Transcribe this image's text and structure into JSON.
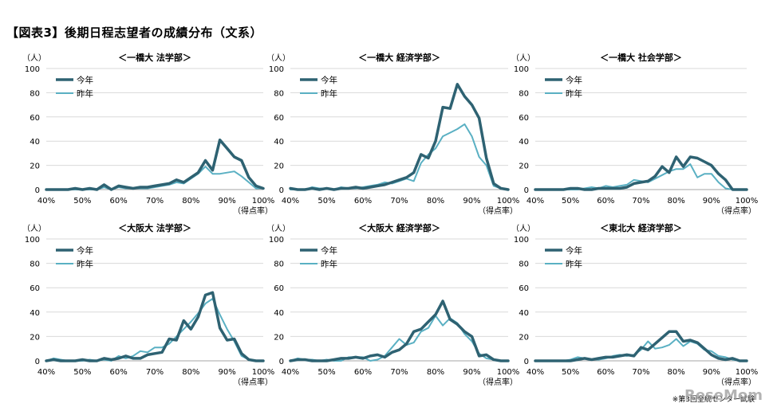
{
  "title": "【図表3】後期日程志望者の成績分布（文系）",
  "footnote": "※第3回全統センター試験",
  "watermark": "ReseMom",
  "colors": {
    "current": "#2e6272",
    "previous": "#5ab0c3",
    "grid": "#d9d9d9",
    "axis": "#a6a6a6"
  },
  "chart_data": [
    {
      "type": "line",
      "title": "＜一橋大 法学部＞",
      "y_unit": "（人）",
      "x_unit": "（得点率）",
      "legend_position": "top-left",
      "grid": true,
      "ylim": [
        0,
        100
      ],
      "y_ticks": [
        "0",
        "20",
        "40",
        "60",
        "80",
        "100"
      ],
      "xlim": [
        40,
        100
      ],
      "x_ticks": [
        "40%",
        "50%",
        "60%",
        "70%",
        "80%",
        "90%",
        "100%"
      ],
      "series": [
        {
          "name": "今年",
          "color": "#2e6272",
          "x": [
            40,
            42,
            44,
            46,
            48,
            50,
            52,
            54,
            56,
            58,
            60,
            62,
            64,
            66,
            68,
            70,
            72,
            74,
            76,
            78,
            80,
            82,
            84,
            86,
            88,
            90,
            92,
            94,
            96,
            98,
            100
          ],
          "values": [
            0,
            0,
            0,
            0,
            1,
            0,
            1,
            0,
            4,
            0,
            3,
            2,
            1,
            2,
            2,
            3,
            4,
            5,
            8,
            6,
            10,
            14,
            24,
            16,
            41,
            34,
            27,
            24,
            10,
            3,
            1
          ]
        },
        {
          "name": "昨年",
          "color": "#5ab0c3",
          "x": [
            40,
            42,
            44,
            46,
            48,
            50,
            52,
            54,
            56,
            58,
            60,
            62,
            64,
            66,
            68,
            70,
            72,
            74,
            76,
            78,
            80,
            82,
            84,
            86,
            88,
            90,
            92,
            94,
            96,
            98,
            100
          ],
          "values": [
            0,
            0,
            0,
            0,
            0,
            0,
            0,
            0,
            2,
            0,
            2,
            1,
            1,
            1,
            1,
            2,
            3,
            4,
            6,
            5,
            9,
            13,
            19,
            13,
            13,
            14,
            15,
            11,
            6,
            1,
            1
          ]
        }
      ]
    },
    {
      "type": "line",
      "title": "＜一橋大 経済学部＞",
      "y_unit": "（人）",
      "x_unit": "（得点率）",
      "legend_position": "top-left",
      "grid": true,
      "ylim": [
        0,
        100
      ],
      "y_ticks": [
        "0",
        "20",
        "40",
        "60",
        "80",
        "100"
      ],
      "xlim": [
        40,
        100
      ],
      "x_ticks": [
        "40%",
        "50%",
        "60%",
        "70%",
        "80%",
        "90%",
        "100%"
      ],
      "series": [
        {
          "name": "今年",
          "color": "#2e6272",
          "x": [
            40,
            42,
            44,
            46,
            48,
            50,
            52,
            54,
            56,
            58,
            60,
            62,
            64,
            66,
            68,
            70,
            72,
            74,
            76,
            78,
            80,
            82,
            84,
            86,
            88,
            90,
            92,
            94,
            96,
            98,
            100
          ],
          "values": [
            1,
            0,
            0,
            1,
            0,
            1,
            0,
            1,
            1,
            2,
            1,
            2,
            3,
            4,
            6,
            8,
            10,
            14,
            29,
            26,
            40,
            68,
            67,
            87,
            77,
            70,
            59,
            26,
            5,
            1,
            0
          ]
        },
        {
          "name": "昨年",
          "color": "#5ab0c3",
          "x": [
            40,
            42,
            44,
            46,
            48,
            50,
            52,
            54,
            56,
            58,
            60,
            62,
            64,
            66,
            68,
            70,
            72,
            74,
            76,
            78,
            80,
            82,
            84,
            86,
            88,
            90,
            92,
            94,
            96,
            98,
            100
          ],
          "values": [
            0,
            0,
            0,
            2,
            1,
            1,
            0,
            2,
            1,
            1,
            2,
            3,
            4,
            6,
            5,
            7,
            9,
            7,
            22,
            29,
            34,
            44,
            47,
            50,
            54,
            44,
            27,
            20,
            3,
            1,
            0
          ]
        }
      ]
    },
    {
      "type": "line",
      "title": "＜一橋大 社会学部＞",
      "y_unit": "（人）",
      "x_unit": "（得点率）",
      "legend_position": "top-left",
      "grid": true,
      "ylim": [
        0,
        100
      ],
      "y_ticks": [
        "0",
        "20",
        "40",
        "60",
        "80",
        "100"
      ],
      "xlim": [
        40,
        100
      ],
      "x_ticks": [
        "40%",
        "50%",
        "60%",
        "70%",
        "80%",
        "90%",
        "100%"
      ],
      "series": [
        {
          "name": "今年",
          "color": "#2e6272",
          "x": [
            40,
            42,
            44,
            46,
            48,
            50,
            52,
            54,
            56,
            58,
            60,
            62,
            64,
            66,
            68,
            70,
            72,
            74,
            76,
            78,
            80,
            82,
            84,
            86,
            88,
            90,
            92,
            94,
            96,
            98,
            100
          ],
          "values": [
            0,
            0,
            0,
            0,
            0,
            1,
            1,
            0,
            0,
            1,
            1,
            1,
            1,
            2,
            5,
            6,
            7,
            11,
            19,
            14,
            27,
            19,
            27,
            26,
            23,
            20,
            13,
            8,
            0,
            0,
            0
          ]
        },
        {
          "name": "昨年",
          "color": "#5ab0c3",
          "x": [
            40,
            42,
            44,
            46,
            48,
            50,
            52,
            54,
            56,
            58,
            60,
            62,
            64,
            66,
            68,
            70,
            72,
            74,
            76,
            78,
            80,
            82,
            84,
            86,
            88,
            90,
            92,
            94,
            96,
            98,
            100
          ],
          "values": [
            0,
            0,
            0,
            0,
            0,
            0,
            0,
            1,
            2,
            1,
            3,
            2,
            3,
            4,
            8,
            7,
            6,
            9,
            12,
            15,
            17,
            17,
            21,
            10,
            13,
            13,
            6,
            1,
            0,
            0,
            0
          ]
        }
      ]
    },
    {
      "type": "line",
      "title": "＜大阪大 法学部＞",
      "y_unit": "（人）",
      "x_unit": "（得点率）",
      "legend_position": "top-left",
      "grid": true,
      "ylim": [
        0,
        100
      ],
      "y_ticks": [
        "0",
        "20",
        "40",
        "60",
        "80",
        "100"
      ],
      "xlim": [
        40,
        100
      ],
      "x_ticks": [
        "40%",
        "50%",
        "60%",
        "70%",
        "80%",
        "90%",
        "100%"
      ],
      "series": [
        {
          "name": "今年",
          "color": "#2e6272",
          "x": [
            40,
            42,
            44,
            46,
            48,
            50,
            52,
            54,
            56,
            58,
            60,
            62,
            64,
            66,
            68,
            70,
            72,
            74,
            76,
            78,
            80,
            82,
            84,
            86,
            88,
            90,
            92,
            94,
            96,
            98,
            100
          ],
          "values": [
            0,
            1,
            0,
            0,
            0,
            1,
            0,
            0,
            2,
            1,
            2,
            4,
            2,
            2,
            5,
            6,
            7,
            18,
            17,
            33,
            26,
            36,
            54,
            56,
            27,
            17,
            18,
            6,
            1,
            0,
            0
          ]
        },
        {
          "name": "昨年",
          "color": "#5ab0c3",
          "x": [
            40,
            42,
            44,
            46,
            48,
            50,
            52,
            54,
            56,
            58,
            60,
            62,
            64,
            66,
            68,
            70,
            72,
            74,
            76,
            78,
            80,
            82,
            84,
            86,
            88,
            90,
            92,
            94,
            96,
            98,
            100
          ],
          "values": [
            0,
            2,
            1,
            0,
            0,
            0,
            1,
            0,
            1,
            0,
            4,
            2,
            4,
            8,
            7,
            11,
            11,
            14,
            20,
            26,
            32,
            39,
            47,
            51,
            38,
            26,
            16,
            4,
            1,
            0,
            0
          ]
        }
      ]
    },
    {
      "type": "line",
      "title": "＜大阪大 経済学部＞",
      "y_unit": "（人）",
      "x_unit": "（得点率）",
      "legend_position": "top-left",
      "grid": true,
      "ylim": [
        0,
        100
      ],
      "y_ticks": [
        "0",
        "20",
        "40",
        "60",
        "80",
        "100"
      ],
      "xlim": [
        40,
        100
      ],
      "x_ticks": [
        "40%",
        "50%",
        "60%",
        "70%",
        "80%",
        "90%",
        "100%"
      ],
      "series": [
        {
          "name": "今年",
          "color": "#2e6272",
          "x": [
            40,
            42,
            44,
            46,
            48,
            50,
            52,
            54,
            56,
            58,
            60,
            62,
            64,
            66,
            68,
            70,
            72,
            74,
            76,
            78,
            80,
            82,
            84,
            86,
            88,
            90,
            92,
            94,
            96,
            98,
            100
          ],
          "values": [
            0,
            1,
            1,
            0,
            0,
            0,
            1,
            2,
            2,
            3,
            2,
            4,
            5,
            3,
            7,
            9,
            14,
            24,
            26,
            32,
            38,
            49,
            34,
            30,
            24,
            20,
            4,
            5,
            1,
            0,
            0
          ]
        },
        {
          "name": "昨年",
          "color": "#5ab0c3",
          "x": [
            40,
            42,
            44,
            46,
            48,
            50,
            52,
            54,
            56,
            58,
            60,
            62,
            64,
            66,
            68,
            70,
            72,
            74,
            76,
            78,
            80,
            82,
            84,
            86,
            88,
            90,
            92,
            94,
            96,
            98,
            100
          ],
          "values": [
            0,
            2,
            1,
            1,
            0,
            1,
            0,
            0,
            3,
            3,
            3,
            0,
            1,
            4,
            11,
            18,
            13,
            15,
            24,
            27,
            37,
            29,
            35,
            31,
            22,
            16,
            6,
            2,
            1,
            0,
            0
          ]
        }
      ]
    },
    {
      "type": "line",
      "title": "＜東北大 経済学部＞",
      "y_unit": "（人）",
      "x_unit": "（得点率）",
      "legend_position": "top-left",
      "grid": true,
      "ylim": [
        0,
        100
      ],
      "y_ticks": [
        "0",
        "20",
        "40",
        "60",
        "80",
        "100"
      ],
      "xlim": [
        40,
        100
      ],
      "x_ticks": [
        "40%",
        "50%",
        "60%",
        "70%",
        "80%",
        "90%",
        "100%"
      ],
      "series": [
        {
          "name": "今年",
          "color": "#2e6272",
          "x": [
            40,
            42,
            44,
            46,
            48,
            50,
            52,
            54,
            56,
            58,
            60,
            62,
            64,
            66,
            68,
            70,
            72,
            74,
            76,
            78,
            80,
            82,
            84,
            86,
            88,
            90,
            92,
            94,
            96,
            98,
            100
          ],
          "values": [
            0,
            0,
            0,
            0,
            0,
            0,
            1,
            2,
            1,
            2,
            3,
            3,
            4,
            5,
            4,
            11,
            9,
            14,
            19,
            24,
            24,
            16,
            17,
            15,
            10,
            5,
            2,
            1,
            2,
            0,
            0
          ]
        },
        {
          "name": "昨年",
          "color": "#5ab0c3",
          "x": [
            40,
            42,
            44,
            46,
            48,
            50,
            52,
            54,
            56,
            58,
            60,
            62,
            64,
            66,
            68,
            70,
            72,
            74,
            76,
            78,
            80,
            82,
            84,
            86,
            88,
            90,
            92,
            94,
            96,
            98,
            100
          ],
          "values": [
            0,
            0,
            0,
            0,
            0,
            1,
            3,
            2,
            1,
            1,
            2,
            4,
            5,
            4,
            5,
            9,
            16,
            10,
            11,
            13,
            18,
            12,
            16,
            14,
            9,
            8,
            4,
            3,
            1,
            0,
            0
          ]
        }
      ]
    }
  ]
}
